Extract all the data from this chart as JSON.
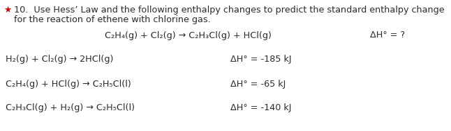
{
  "background_color": "#ffffff",
  "fig_width": 6.46,
  "fig_height": 1.89,
  "dpi": 100,
  "header_line1": "10.  Use Hess’ Law and the following enthalpy changes to predict the standard enthalpy change",
  "header_line2": "for the reaction of ethene with chlorine gas.",
  "text_color": "#2a2a2a",
  "star_color": "#cc0000",
  "main_reaction": "C₂H₄(g) + Cl₂(g) → C₂H₃Cl(g) + HCl(g)",
  "main_dH": "ΔH° = ?",
  "reactions": [
    {
      "equation": "H₂(g) + Cl₂(g) → 2HCl(g)",
      "dH": "ΔH° = -185 kJ"
    },
    {
      "equation": "C₂H₄(g) + HCl(g) → C₂H₅Cl(l)",
      "dH": "ΔH° = -65 kJ"
    },
    {
      "equation": "C₂H₃Cl(g) + H₂(g) → C₂H₅Cl(l)",
      "dH": "ΔH° = -140 kJ"
    }
  ],
  "fontsize_header": 9.2,
  "fontsize_main": 9.2,
  "fontsize_sub": 9.2
}
